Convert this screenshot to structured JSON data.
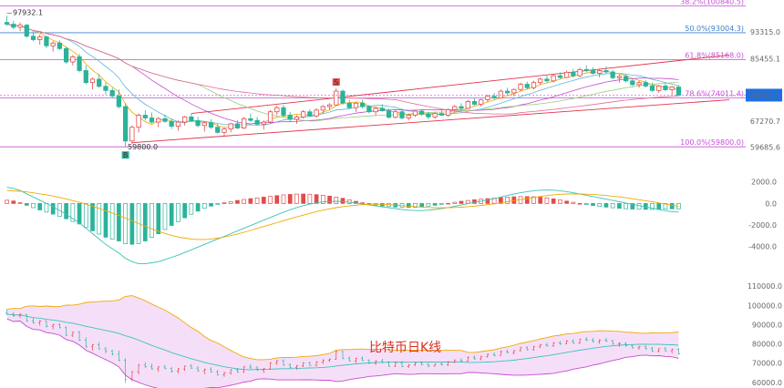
{
  "chart_data": [
    {
      "type": "candlestick",
      "panel": "price",
      "ylim": [
        58000,
        102000
      ],
      "y_ticks": [
        "93315.0",
        "85455.1",
        "74842.1",
        "67270.7",
        "59685.6"
      ],
      "current_price_label": "74842.1",
      "annotations": {
        "high_label": "97932.1",
        "low_label": "59800.0",
        "low_marker": "B",
        "signal_marker": "S"
      },
      "fib_levels": [
        {
          "label": "38.2%(100840.5)",
          "value": 100840.5,
          "color": "#c44fd6"
        },
        {
          "label": "50.0%(93004.3)",
          "value": 93004.3,
          "color": "#3f7fd0"
        },
        {
          "label": "61.8%(85168.0)",
          "value": 85168.0,
          "color": "#c44fd6"
        },
        {
          "label": "78.6%(74011.4)",
          "value": 74011.4,
          "color": "#c44fd6"
        },
        {
          "label": "100.0%(59800.0)",
          "value": 59800.0,
          "color": "#c44fd6"
        }
      ],
      "colors": {
        "up": "#e24a4a",
        "down": "#2bb39a",
        "channel": "#e2334a",
        "price_tag": "#1f6fe0"
      },
      "candles": [
        [
          96000,
          97932,
          95000,
          95500
        ],
        [
          95500,
          96500,
          94000,
          94600
        ],
        [
          94600,
          96000,
          93500,
          95200
        ],
        [
          95200,
          95600,
          91500,
          92000
        ],
        [
          92000,
          93500,
          90500,
          91000
        ],
        [
          91000,
          92500,
          89500,
          91800
        ],
        [
          91800,
          92200,
          88500,
          89200
        ],
        [
          89200,
          90500,
          87500,
          90000
        ],
        [
          90000,
          90800,
          88000,
          88400
        ],
        [
          88400,
          89000,
          84000,
          84500
        ],
        [
          84500,
          86500,
          83500,
          86000
        ],
        [
          86000,
          86800,
          81500,
          82000
        ],
        [
          82000,
          83500,
          78000,
          78500
        ],
        [
          78500,
          80000,
          76500,
          79500
        ],
        [
          79500,
          81000,
          77000,
          77400
        ],
        [
          77400,
          78500,
          75000,
          76200
        ],
        [
          76200,
          77000,
          74000,
          74600
        ],
        [
          74600,
          76500,
          71000,
          71500
        ],
        [
          71500,
          72500,
          59800,
          61500
        ],
        [
          61500,
          66000,
          60500,
          65500
        ],
        [
          65500,
          69500,
          64000,
          69000
        ],
        [
          69000,
          70500,
          67500,
          68200
        ],
        [
          68200,
          69800,
          66500,
          67000
        ],
        [
          67000,
          68500,
          65500,
          68000
        ],
        [
          68000,
          69200,
          66800,
          67200
        ],
        [
          67200,
          68000,
          65000,
          65800
        ],
        [
          65800,
          67500,
          64500,
          67000
        ],
        [
          67000,
          68800,
          66000,
          68500
        ],
        [
          68500,
          69500,
          67000,
          67400
        ],
        [
          67400,
          68500,
          65500,
          66000
        ],
        [
          66000,
          67200,
          64200,
          66800
        ],
        [
          66800,
          67800,
          65000,
          65500
        ],
        [
          65500,
          66500,
          63500,
          64000
        ],
        [
          64000,
          65500,
          62800,
          65000
        ],
        [
          65000,
          66800,
          64000,
          66500
        ],
        [
          66500,
          67500,
          65000,
          65300
        ],
        [
          65300,
          68500,
          65000,
          68000
        ],
        [
          68000,
          69500,
          67000,
          67500
        ],
        [
          67500,
          68500,
          66000,
          66400
        ],
        [
          66400,
          67500,
          64800,
          67000
        ],
        [
          67000,
          70500,
          66500,
          70000
        ],
        [
          70000,
          71800,
          69000,
          71200
        ],
        [
          71200,
          72000,
          68500,
          69000
        ],
        [
          69000,
          70000,
          67000,
          67800
        ],
        [
          67800,
          69000,
          66500,
          68500
        ],
        [
          68500,
          70500,
          68000,
          70000
        ],
        [
          70000,
          70800,
          68500,
          68800
        ],
        [
          68800,
          71000,
          68300,
          70500
        ],
        [
          70500,
          72000,
          69500,
          71500
        ],
        [
          71500,
          72500,
          70500,
          72000
        ],
        [
          72000,
          76800,
          71800,
          76000
        ],
        [
          76000,
          76500,
          72000,
          72500
        ],
        [
          72500,
          73500,
          70800,
          71200
        ],
        [
          71200,
          72800,
          70000,
          72500
        ],
        [
          72500,
          73500,
          71000,
          71500
        ],
        [
          71500,
          72000,
          69500,
          70000
        ],
        [
          70000,
          71500,
          69000,
          71000
        ],
        [
          71000,
          72200,
          70000,
          70300
        ],
        [
          70300,
          71000,
          68000,
          68400
        ],
        [
          68400,
          70500,
          68000,
          70000
        ],
        [
          70000,
          71000,
          67800,
          68200
        ],
        [
          68200,
          69500,
          67500,
          69000
        ],
        [
          69000,
          70500,
          68500,
          70200
        ],
        [
          70200,
          70800,
          68800,
          69300
        ],
        [
          69300,
          70000,
          67800,
          68500
        ],
        [
          68500,
          69800,
          68000,
          69500
        ],
        [
          69500,
          70500,
          68800,
          69000
        ],
        [
          69000,
          71000,
          68500,
          70600
        ],
        [
          70600,
          72000,
          70000,
          71500
        ],
        [
          71500,
          72500,
          70500,
          71000
        ],
        [
          71000,
          73500,
          70800,
          73000
        ],
        [
          73000,
          74000,
          71800,
          72200
        ],
        [
          72200,
          73800,
          71500,
          73500
        ],
        [
          73500,
          75000,
          72800,
          74500
        ],
        [
          74500,
          75500,
          73500,
          74000
        ],
        [
          74000,
          76500,
          73800,
          76000
        ],
        [
          76000,
          77000,
          75000,
          75500
        ],
        [
          75500,
          76800,
          74500,
          76500
        ],
        [
          76500,
          78500,
          76000,
          78000
        ],
        [
          78000,
          78800,
          76500,
          77000
        ],
        [
          77000,
          79000,
          76500,
          78500
        ],
        [
          78500,
          80000,
          77800,
          79500
        ],
        [
          79500,
          80500,
          78500,
          79000
        ],
        [
          79000,
          81000,
          78500,
          80500
        ],
        [
          80500,
          81500,
          79500,
          80000
        ],
        [
          80000,
          82000,
          79800,
          81500
        ],
        [
          81500,
          82500,
          80000,
          80500
        ],
        [
          80500,
          82800,
          80000,
          82300
        ],
        [
          82300,
          83500,
          81500,
          82000
        ],
        [
          82000,
          83000,
          80800,
          81200
        ],
        [
          81200,
          82500,
          80000,
          82000
        ],
        [
          82000,
          83200,
          81000,
          81600
        ],
        [
          81600,
          82200,
          79500,
          79900
        ],
        [
          79900,
          80800,
          78500,
          80300
        ],
        [
          80300,
          80800,
          78500,
          79000
        ],
        [
          79000,
          79800,
          77500,
          77900
        ],
        [
          77900,
          79000,
          77000,
          78500
        ],
        [
          78500,
          79200,
          77000,
          77500
        ],
        [
          77500,
          78500,
          75800,
          76200
        ],
        [
          76200,
          77800,
          75500,
          77500
        ],
        [
          77500,
          78300,
          76000,
          76400
        ],
        [
          76400,
          77500,
          75000,
          77200
        ],
        [
          77200,
          77800,
          74500,
          74842
        ]
      ]
    },
    {
      "type": "macd",
      "panel": "macd",
      "ylim": [
        -5800,
        3500
      ],
      "y_ticks": [
        "2000.0",
        "0.0",
        "-2000.0",
        "-4000.0"
      ],
      "dif": [
        1500,
        1400,
        1200,
        900,
        600,
        300,
        0,
        -300,
        -650,
        -1000,
        -1400,
        -1800,
        -2300,
        -2800,
        -3300,
        -3800,
        -4200,
        -4600,
        -5100,
        -5400,
        -5600,
        -5600,
        -5500,
        -5400,
        -5200,
        -5000,
        -4800,
        -4550,
        -4300,
        -4050,
        -3800,
        -3550,
        -3300,
        -3050,
        -2800,
        -2550,
        -2300,
        -2050,
        -1800,
        -1550,
        -1300,
        -1050,
        -800,
        -580,
        -380,
        -200,
        -60,
        60,
        140,
        180,
        200,
        180,
        120,
        40,
        -50,
        -140,
        -230,
        -320,
        -400,
        -480,
        -560,
        -620,
        -660,
        -660,
        -620,
        -560,
        -480,
        -380,
        -260,
        -140,
        -20,
        100,
        220,
        340,
        460,
        600,
        740,
        880,
        1000,
        1100,
        1180,
        1230,
        1250,
        1230,
        1180,
        1100,
        1000,
        880,
        760,
        640,
        520,
        400,
        280,
        160,
        40,
        -80,
        -200,
        -320,
        -440,
        -560,
        -680,
        -760,
        -800
      ],
      "dea": [
        1200,
        1170,
        1130,
        1070,
        990,
        900,
        800,
        690,
        560,
        420,
        270,
        110,
        -70,
        -260,
        -460,
        -670,
        -890,
        -1120,
        -1360,
        -1610,
        -1870,
        -2120,
        -2360,
        -2580,
        -2780,
        -2960,
        -3110,
        -3220,
        -3300,
        -3340,
        -3340,
        -3300,
        -3220,
        -3110,
        -2980,
        -2830,
        -2670,
        -2500,
        -2320,
        -2140,
        -1960,
        -1780,
        -1600,
        -1420,
        -1250,
        -1080,
        -920,
        -760,
        -620,
        -500,
        -390,
        -300,
        -220,
        -160,
        -110,
        -80,
        -70,
        -80,
        -110,
        -150,
        -200,
        -250,
        -300,
        -340,
        -370,
        -390,
        -400,
        -395,
        -375,
        -345,
        -300,
        -245,
        -180,
        -110,
        -30,
        60,
        160,
        260,
        360,
        460,
        560,
        650,
        730,
        800,
        850,
        880,
        890,
        880,
        860,
        830,
        790,
        740,
        680,
        610,
        530,
        440,
        350,
        250,
        150,
        50,
        -60,
        -160,
        -250
      ],
      "hist": [
        600,
        460,
        140,
        -340,
        -780,
        -1200,
        -1600,
        -1980,
        -2420,
        -2840,
        -3340,
        -3820,
        -4460,
        -5080,
        -5680,
        -6260,
        -6620,
        -6960,
        -7480,
        -7580,
        -7460,
        -6960,
        -6280,
        -5640,
        -4840,
        -4080,
        -3380,
        -2660,
        -2000,
        -1420,
        -920,
        -500,
        -160,
        120,
        360,
        560,
        740,
        900,
        1040,
        1180,
        1320,
        1460,
        1600,
        1680,
        1740,
        1760,
        1720,
        1640,
        1520,
        1360,
        1180,
        960,
        680,
        400,
        120,
        -120,
        -320,
        -480,
        -580,
        -660,
        -720,
        -740,
        -720,
        -640,
        -500,
        -340,
        -160,
        30,
        230,
        410,
        560,
        690,
        800,
        900,
        980,
        1080,
        1160,
        1240,
        1280,
        1280,
        1240,
        1160,
        1040,
        860,
        660,
        440,
        220,
        0,
        -200,
        -380,
        -540,
        -680,
        -800,
        -900,
        -980,
        -1040,
        -1080,
        -1100,
        -1100,
        -1080,
        -1040,
        -1000,
        -980
      ]
    },
    {
      "type": "bollinger",
      "panel": "boll",
      "ylim": [
        58000,
        112000
      ],
      "y_ticks": [
        "110000.0",
        "100000.0",
        "90000.0",
        "80000.0",
        "70000.0",
        "60000.0"
      ],
      "title": "比特币日K线"
    }
  ]
}
